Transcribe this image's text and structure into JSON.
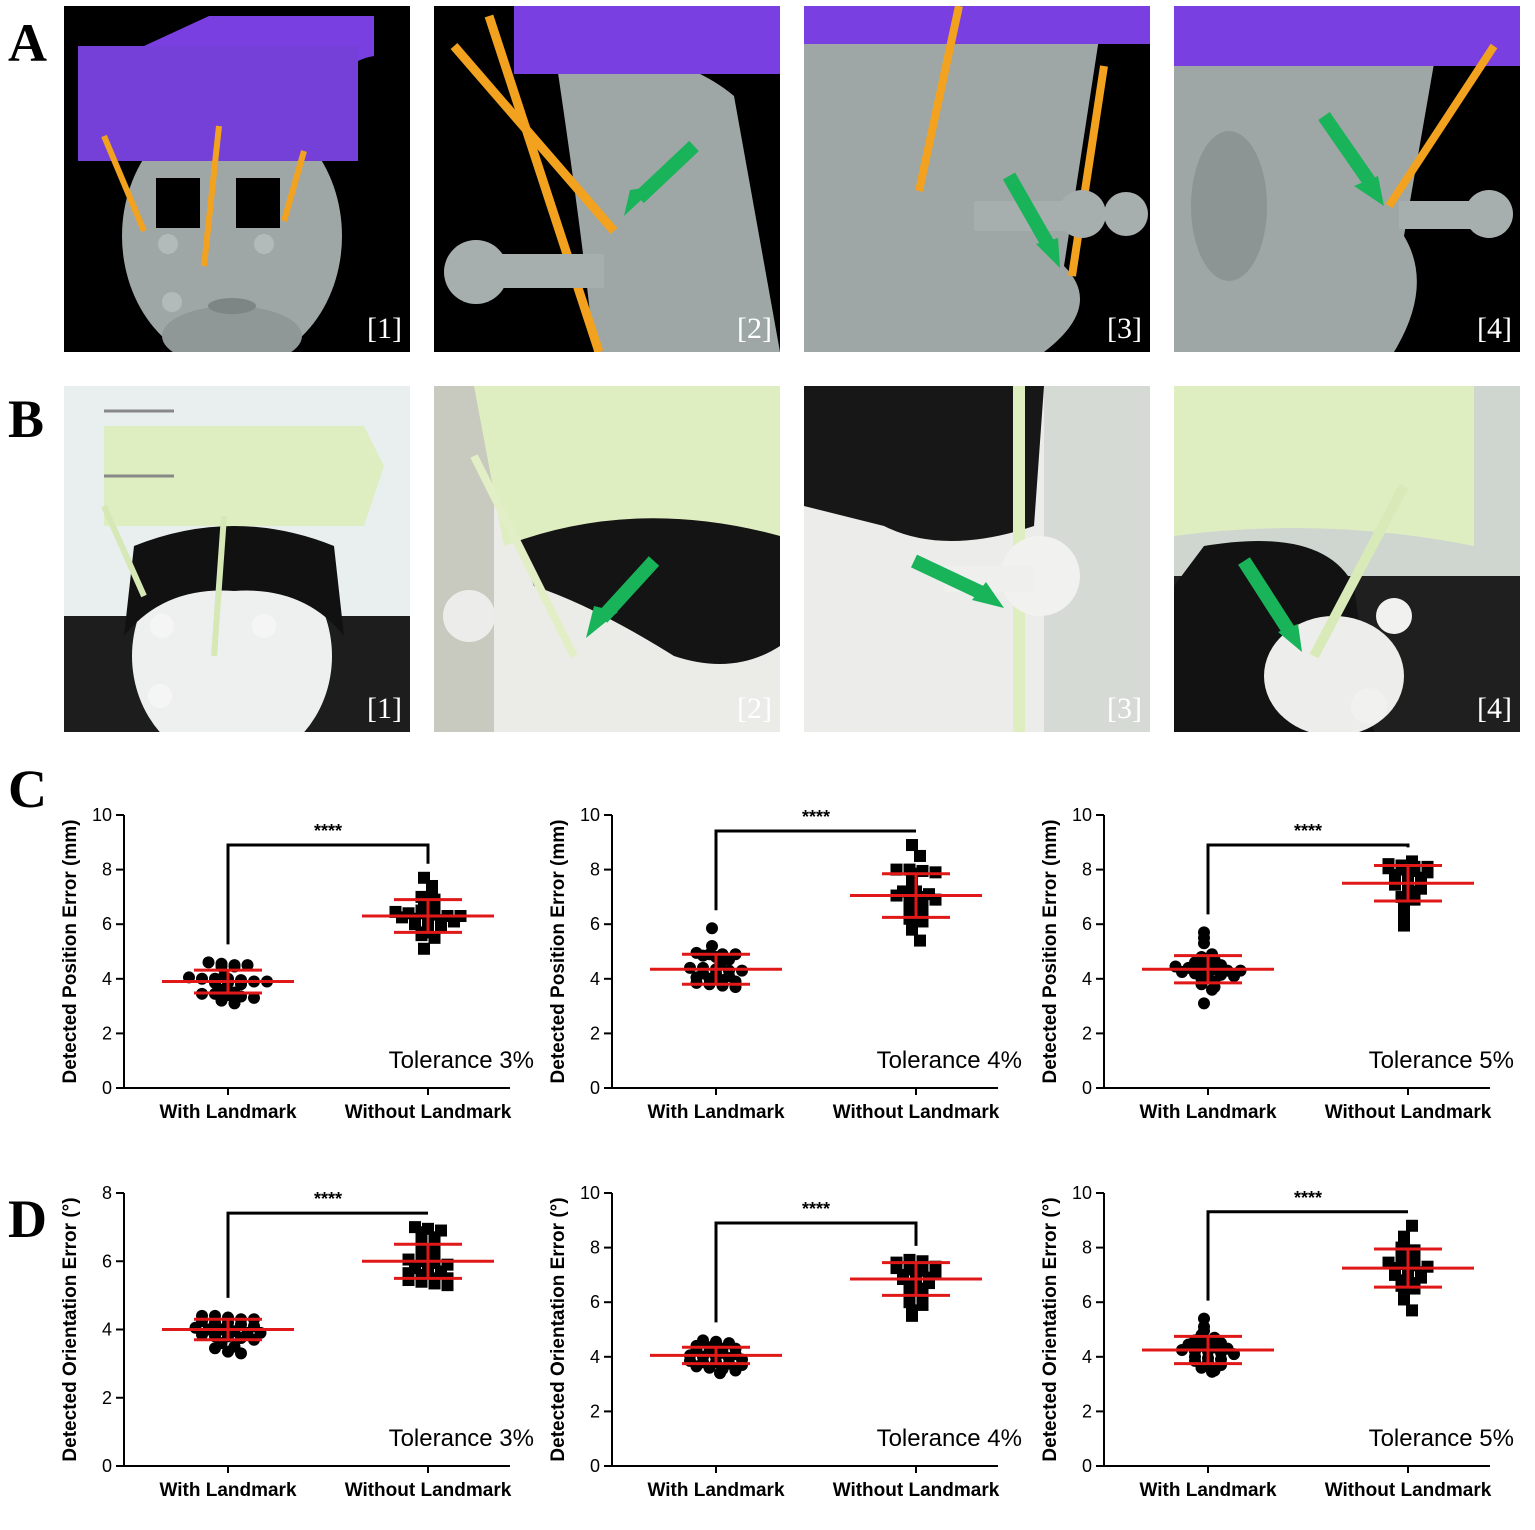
{
  "figure": {
    "letters": {
      "a": "A",
      "b": "B",
      "c": "C",
      "d": "D"
    },
    "panel_tags": [
      "[1]",
      "[2]",
      "[3]",
      "[4]"
    ],
    "photo_descriptions": {
      "row_a": "3D render: purple head frame with orange landmark pins on a grey head model; green arrows indicate pin contact points",
      "row_b": "Photographs: printed pale green frame on a mannequin head with black wig; green arrows indicate pin contact points"
    },
    "colors": {
      "frame_purple": "#7a3fe0",
      "pin_orange": "#f2a21e",
      "arrow_green": "#19b35a",
      "head_grey": "#9ea7a6",
      "print_green": "#dfeec0",
      "mean_bar_red": "#e01818"
    }
  },
  "chart_data": [
    {
      "id": "C1",
      "type": "scatter",
      "ylabel": "Detected Position Error (mm)",
      "ylim": [
        0,
        10
      ],
      "yticks": [
        0,
        2,
        4,
        6,
        8,
        10
      ],
      "categories": [
        "With Landmark",
        "Without Landmark"
      ],
      "annotation": "Tolerance 3%",
      "significance": "****",
      "series": [
        {
          "category": "With Landmark",
          "marker": "circle",
          "mean": 3.9,
          "sd": 0.42,
          "values": [
            4.6,
            4.55,
            4.5,
            4.5,
            4.45,
            4.45,
            4.1,
            4.05,
            4.0,
            4.0,
            4.0,
            3.95,
            3.9,
            3.9,
            3.85,
            3.85,
            3.8,
            3.6,
            3.5,
            3.45,
            3.45,
            3.4,
            3.35,
            3.3,
            3.2,
            3.1
          ]
        },
        {
          "category": "Without Landmark",
          "marker": "square",
          "mean": 6.3,
          "sd": 0.6,
          "values": [
            7.7,
            7.4,
            7.1,
            7.0,
            6.9,
            6.8,
            6.5,
            6.5,
            6.45,
            6.4,
            6.4,
            6.35,
            6.3,
            6.3,
            6.25,
            6.2,
            6.2,
            6.15,
            6.1,
            6.0,
            5.95,
            5.9,
            5.7,
            5.6,
            5.5,
            5.1
          ]
        }
      ]
    },
    {
      "id": "C2",
      "type": "scatter",
      "ylabel": "Detected Position Error (mm)",
      "ylim": [
        0,
        10
      ],
      "yticks": [
        0,
        2,
        4,
        6,
        8,
        10
      ],
      "categories": [
        "With Landmark",
        "Without Landmark"
      ],
      "annotation": "Tolerance 4%",
      "significance": "****",
      "series": [
        {
          "category": "With Landmark",
          "marker": "circle",
          "mean": 4.35,
          "sd": 0.55,
          "values": [
            5.85,
            5.2,
            4.95,
            4.9,
            4.9,
            4.9,
            4.85,
            4.8,
            4.7,
            4.5,
            4.4,
            4.4,
            4.35,
            4.3,
            4.3,
            4.2,
            4.2,
            4.1,
            4.05,
            4.0,
            3.95,
            3.9,
            3.85,
            3.8,
            3.75,
            3.7
          ]
        },
        {
          "category": "Without Landmark",
          "marker": "square",
          "mean": 7.05,
          "sd": 0.8,
          "values": [
            8.9,
            8.5,
            8.0,
            8.0,
            7.95,
            7.9,
            7.85,
            7.5,
            7.4,
            7.2,
            7.2,
            7.1,
            7.05,
            7.0,
            7.0,
            6.9,
            6.8,
            6.7,
            6.6,
            6.5,
            6.3,
            6.2,
            6.1,
            6.0,
            5.8,
            5.4
          ]
        }
      ]
    },
    {
      "id": "C3",
      "type": "scatter",
      "ylabel": "Detected Position Error (mm)",
      "ylim": [
        0,
        10
      ],
      "yticks": [
        0,
        2,
        4,
        6,
        8,
        10
      ],
      "categories": [
        "With Landmark",
        "Without Landmark"
      ],
      "annotation": "Tolerance 5%",
      "significance": "****",
      "series": [
        {
          "category": "With Landmark",
          "marker": "circle",
          "mean": 4.35,
          "sd": 0.5,
          "values": [
            5.7,
            5.5,
            5.3,
            4.9,
            4.8,
            4.7,
            4.6,
            4.55,
            4.5,
            4.45,
            4.4,
            4.4,
            4.35,
            4.3,
            4.3,
            4.25,
            4.2,
            4.2,
            4.15,
            4.1,
            4.0,
            3.9,
            3.8,
            3.7,
            3.6,
            3.1
          ]
        },
        {
          "category": "Without Landmark",
          "marker": "square",
          "mean": 7.5,
          "sd": 0.65,
          "values": [
            8.3,
            8.2,
            8.15,
            8.1,
            8.1,
            8.05,
            8.0,
            7.95,
            7.9,
            7.8,
            7.75,
            7.7,
            7.6,
            7.5,
            7.5,
            7.45,
            7.4,
            7.3,
            7.2,
            7.0,
            6.9,
            6.8,
            6.6,
            6.3,
            6.1,
            5.95
          ]
        }
      ]
    },
    {
      "id": "D1",
      "type": "scatter",
      "ylabel": "Detected Orientation Error (°)",
      "ylim": [
        0,
        8
      ],
      "yticks": [
        0,
        2,
        4,
        6,
        8
      ],
      "categories": [
        "With Landmark",
        "Without Landmark"
      ],
      "annotation": "Tolerance 3%",
      "significance": "****",
      "series": [
        {
          "category": "With Landmark",
          "marker": "circle",
          "mean": 4.0,
          "sd": 0.3,
          "values": [
            4.4,
            4.4,
            4.35,
            4.3,
            4.3,
            4.25,
            4.2,
            4.2,
            4.15,
            4.1,
            4.05,
            4.0,
            4.0,
            3.95,
            3.9,
            3.9,
            3.85,
            3.8,
            3.8,
            3.75,
            3.7,
            3.6,
            3.5,
            3.45,
            3.35,
            3.3
          ]
        },
        {
          "category": "Without Landmark",
          "marker": "square",
          "mean": 6.0,
          "sd": 0.5,
          "values": [
            7.0,
            6.95,
            6.9,
            6.85,
            6.7,
            6.6,
            6.5,
            6.4,
            6.3,
            6.2,
            6.1,
            6.05,
            6.0,
            5.95,
            5.9,
            5.8,
            5.75,
            5.7,
            5.65,
            5.6,
            5.5,
            5.5,
            5.45,
            5.4,
            5.35,
            5.3
          ]
        }
      ]
    },
    {
      "id": "D2",
      "type": "scatter",
      "ylabel": "Detected Orientation Error (°)",
      "ylim": [
        0,
        10
      ],
      "yticks": [
        0,
        2,
        4,
        6,
        8,
        10
      ],
      "categories": [
        "With Landmark",
        "Without Landmark"
      ],
      "annotation": "Tolerance 4%",
      "significance": "****",
      "series": [
        {
          "category": "With Landmark",
          "marker": "circle",
          "mean": 4.05,
          "sd": 0.3,
          "values": [
            4.6,
            4.55,
            4.5,
            4.4,
            4.35,
            4.3,
            4.3,
            4.25,
            4.2,
            4.15,
            4.1,
            4.05,
            4.0,
            4.0,
            3.95,
            3.9,
            3.85,
            3.8,
            3.8,
            3.75,
            3.7,
            3.65,
            3.6,
            3.55,
            3.5,
            3.4
          ]
        },
        {
          "category": "Without Landmark",
          "marker": "square",
          "mean": 6.85,
          "sd": 0.6,
          "values": [
            7.55,
            7.5,
            7.45,
            7.4,
            7.35,
            7.3,
            7.25,
            7.2,
            7.15,
            7.1,
            7.0,
            6.95,
            6.9,
            6.85,
            6.8,
            6.7,
            6.6,
            6.5,
            6.4,
            6.3,
            6.2,
            6.1,
            6.0,
            5.9,
            5.7,
            5.5
          ]
        }
      ]
    },
    {
      "id": "D3",
      "type": "scatter",
      "ylabel": "Detected Orientation Error (°)",
      "ylim": [
        0,
        10
      ],
      "yticks": [
        0,
        2,
        4,
        6,
        8,
        10
      ],
      "categories": [
        "With Landmark",
        "Without Landmark"
      ],
      "annotation": "Tolerance 5%",
      "significance": "****",
      "series": [
        {
          "category": "With Landmark",
          "marker": "circle",
          "mean": 4.25,
          "sd": 0.5,
          "values": [
            5.4,
            5.1,
            4.95,
            4.8,
            4.7,
            4.6,
            4.55,
            4.5,
            4.45,
            4.4,
            4.35,
            4.3,
            4.25,
            4.2,
            4.2,
            4.15,
            4.1,
            4.0,
            3.95,
            3.9,
            3.85,
            3.8,
            3.7,
            3.6,
            3.5,
            3.45
          ]
        },
        {
          "category": "Without Landmark",
          "marker": "square",
          "mean": 7.25,
          "sd": 0.7,
          "values": [
            8.8,
            8.4,
            8.1,
            8.0,
            7.9,
            7.8,
            7.7,
            7.6,
            7.5,
            7.45,
            7.4,
            7.35,
            7.3,
            7.25,
            7.2,
            7.1,
            7.0,
            6.95,
            6.9,
            6.8,
            6.7,
            6.6,
            6.5,
            6.3,
            6.1,
            5.7
          ]
        }
      ]
    }
  ]
}
